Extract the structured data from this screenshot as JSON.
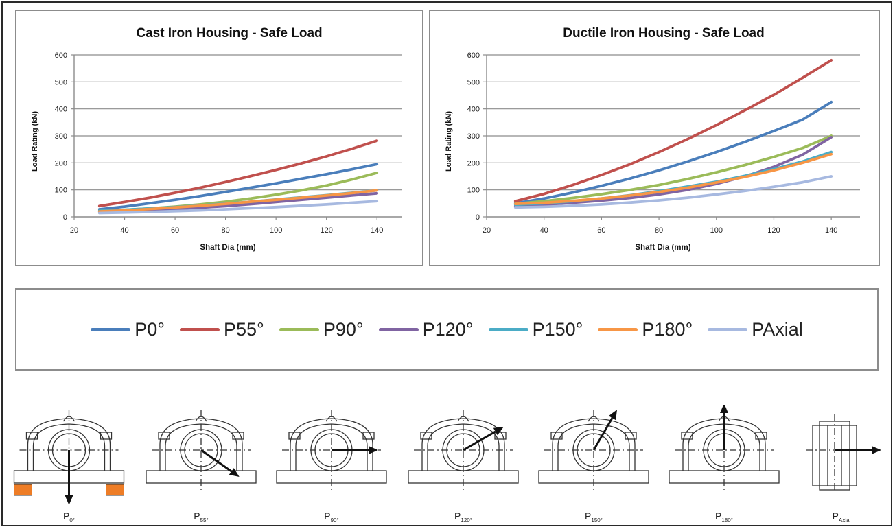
{
  "colors": {
    "P0°": "#4a7ebb",
    "P55°": "#c0504d",
    "P90°": "#9bbb59",
    "P120°": "#8064a2",
    "P150°": "#4bacc6",
    "P180°": "#f79646",
    "PAxial": "#a7b9e0",
    "grid": "#8c8c8c",
    "housing_foot": "#ee7d26"
  },
  "chart_data": [
    {
      "type": "line",
      "title": "Cast Iron Housing - Safe Load",
      "xlabel": "Shaft Dia (mm)",
      "ylabel": "Load Rating (kN)",
      "xlim": [
        20,
        150
      ],
      "ylim": [
        0,
        600
      ],
      "xticks": [
        20,
        40,
        60,
        80,
        100,
        120,
        140
      ],
      "yticks": [
        0,
        100,
        200,
        300,
        400,
        500,
        600
      ],
      "grid": "horizontal",
      "x": [
        30,
        40,
        50,
        60,
        70,
        80,
        90,
        100,
        110,
        120,
        130,
        140
      ],
      "series": [
        {
          "name": "P0°",
          "values": [
            28,
            38,
            50,
            63,
            77,
            92,
            108,
            124,
            141,
            158,
            176,
            195
          ]
        },
        {
          "name": "P55°",
          "values": [
            40,
            55,
            71,
            89,
            108,
            129,
            151,
            174,
            198,
            224,
            252,
            282
          ]
        },
        {
          "name": "P90°",
          "values": [
            22,
            26,
            31,
            38,
            46,
            56,
            68,
            82,
            98,
            116,
            138,
            163
          ]
        },
        {
          "name": "P120°",
          "values": [
            18,
            21,
            25,
            29,
            34,
            40,
            47,
            55,
            63,
            71,
            79,
            87
          ]
        },
        {
          "name": "P150°",
          "values": [
            22,
            26,
            31,
            36,
            42,
            49,
            56,
            64,
            72,
            80,
            89,
            98
          ]
        },
        {
          "name": "P180°",
          "values": [
            20,
            24,
            29,
            35,
            41,
            48,
            56,
            63,
            71,
            79,
            88,
            98
          ]
        },
        {
          "name": "PAxial",
          "values": [
            14,
            16,
            18,
            21,
            24,
            28,
            32,
            36,
            41,
            46,
            52,
            58
          ]
        }
      ]
    },
    {
      "type": "line",
      "title": "Ductile Iron Housing - Safe Load",
      "xlabel": "Shaft Dia (mm)",
      "ylabel": "Load Rating (kN)",
      "xlim": [
        20,
        150
      ],
      "ylim": [
        0,
        600
      ],
      "xticks": [
        20,
        40,
        60,
        80,
        100,
        120,
        140
      ],
      "yticks": [
        0,
        100,
        200,
        300,
        400,
        500,
        600
      ],
      "grid": "horizontal",
      "x": [
        30,
        40,
        50,
        60,
        70,
        80,
        90,
        100,
        110,
        120,
        130,
        140
      ],
      "series": [
        {
          "name": "P0°",
          "values": [
            50,
            68,
            90,
            115,
            142,
            172,
            205,
            240,
            278,
            318,
            360,
            425
          ]
        },
        {
          "name": "P55°",
          "values": [
            58,
            85,
            118,
            155,
            195,
            240,
            288,
            340,
            395,
            452,
            515,
            580
          ]
        },
        {
          "name": "P90°",
          "values": [
            48,
            58,
            70,
            84,
            100,
            118,
            140,
            165,
            192,
            222,
            255,
            300
          ]
        },
        {
          "name": "P120°",
          "values": [
            40,
            45,
            52,
            60,
            70,
            83,
            100,
            122,
            150,
            185,
            230,
            295
          ]
        },
        {
          "name": "P150°",
          "values": [
            45,
            50,
            58,
            68,
            80,
            95,
            112,
            130,
            152,
            177,
            205,
            240
          ]
        },
        {
          "name": "P180°",
          "values": [
            48,
            52,
            59,
            68,
            79,
            92,
            108,
            127,
            148,
            172,
            200,
            232
          ]
        },
        {
          "name": "PAxial",
          "values": [
            35,
            37,
            41,
            46,
            53,
            61,
            71,
            83,
            96,
            111,
            128,
            150
          ]
        }
      ]
    }
  ],
  "legend": {
    "items": [
      "P0°",
      "P55°",
      "P90°",
      "P120°",
      "P150°",
      "P180°",
      "PAxial"
    ]
  },
  "diagrams": [
    {
      "label": "P",
      "sub": "0°",
      "arrow_deg": 270
    },
    {
      "label": "P",
      "sub": "55°",
      "arrow_deg": 325
    },
    {
      "label": "P",
      "sub": "90°",
      "arrow_deg": 0
    },
    {
      "label": "P",
      "sub": "120°",
      "arrow_deg": 30
    },
    {
      "label": "P",
      "sub": "150°",
      "arrow_deg": 60
    },
    {
      "label": "P",
      "sub": "180°",
      "arrow_deg": 90
    },
    {
      "label": "P",
      "sub": "Axial",
      "arrow_deg": 0
    }
  ]
}
